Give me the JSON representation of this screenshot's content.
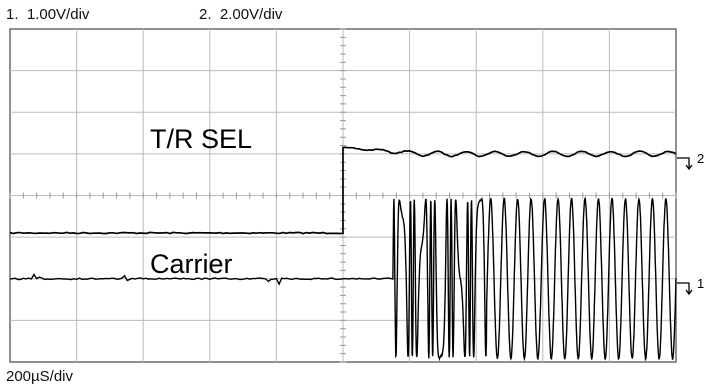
{
  "header": {
    "ch1_num": "1.",
    "ch1_scale": "1.00V/div",
    "ch2_num": "2.",
    "ch2_scale": "2.00V/div"
  },
  "footer": {
    "timebase": "200µS/div"
  },
  "chart_data": {
    "type": "line",
    "title": "",
    "xlabel": "",
    "ylabel": "",
    "grid": true,
    "x_divisions": 10,
    "y_divisions": 8,
    "series": [
      {
        "name": "T/R SEL",
        "channel": 2,
        "marker": "2",
        "color": "#000000",
        "x": [
          0,
          5.0,
          5.0,
          10
        ],
        "y": [
          -0.9,
          -0.9,
          1.15,
          1.0
        ],
        "ripple_after_step_div": 0.06
      },
      {
        "name": "Carrier",
        "channel": 1,
        "marker": "1",
        "color": "#000000",
        "baseline_div": -2.0,
        "burst_start_div": 5.75,
        "burst_amplitude_div": 2.0,
        "burst_cycles": 21
      }
    ]
  }
}
